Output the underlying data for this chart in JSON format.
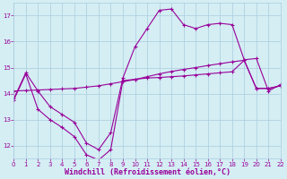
{
  "background_color": "#d4eef4",
  "grid_color": "#aaccdd",
  "line_color": "#990099",
  "xlabel": "Windchill (Refroidissement éolien,°C)",
  "xlabel_color": "#990099",
  "xlim": [
    0,
    22
  ],
  "ylim": [
    11.5,
    17.5
  ],
  "yticks": [
    12,
    13,
    14,
    15,
    16,
    17
  ],
  "xticks": [
    0,
    1,
    2,
    3,
    4,
    5,
    6,
    7,
    8,
    9,
    10,
    11,
    12,
    13,
    14,
    15,
    16,
    17,
    18,
    19,
    20,
    21,
    22
  ],
  "line1_x": [
    0,
    1,
    2,
    3,
    4,
    5,
    6,
    7,
    8,
    9,
    10,
    11,
    12,
    13,
    14,
    15,
    16,
    17,
    18,
    19,
    20,
    21,
    22
  ],
  "line1_y": [
    13.8,
    14.8,
    14.1,
    13.5,
    13.2,
    12.9,
    12.1,
    11.85,
    12.5,
    14.6,
    15.8,
    16.5,
    17.2,
    17.25,
    16.65,
    16.5,
    16.65,
    16.7,
    16.65,
    15.3,
    15.35,
    14.1,
    14.35
  ],
  "line2_x": [
    0,
    1,
    2,
    3,
    4,
    5,
    6,
    7,
    8,
    9,
    10,
    11,
    12,
    13,
    14,
    15,
    16,
    17,
    18,
    19,
    20,
    21,
    22
  ],
  "line2_y": [
    14.1,
    14.12,
    14.14,
    14.16,
    14.18,
    14.2,
    14.25,
    14.3,
    14.38,
    14.46,
    14.54,
    14.65,
    14.76,
    14.85,
    14.93,
    15.0,
    15.08,
    15.15,
    15.22,
    15.28,
    14.2,
    14.2,
    14.3
  ],
  "line3_x": [
    0,
    1,
    2,
    3,
    4,
    5,
    6,
    7,
    8,
    9,
    10,
    11,
    12,
    13,
    14,
    15,
    16,
    17,
    18,
    19,
    20,
    21,
    22
  ],
  "line3_y": [
    13.75,
    14.75,
    13.4,
    13.0,
    12.7,
    12.35,
    11.65,
    11.45,
    11.85,
    14.5,
    14.55,
    14.6,
    14.62,
    14.65,
    14.68,
    14.72,
    14.76,
    14.8,
    14.84,
    15.28,
    14.2,
    14.2,
    14.3
  ],
  "marker": "+",
  "markersize": 3,
  "linewidth": 0.8,
  "tick_fontsize": 5,
  "xlabel_fontsize": 6
}
